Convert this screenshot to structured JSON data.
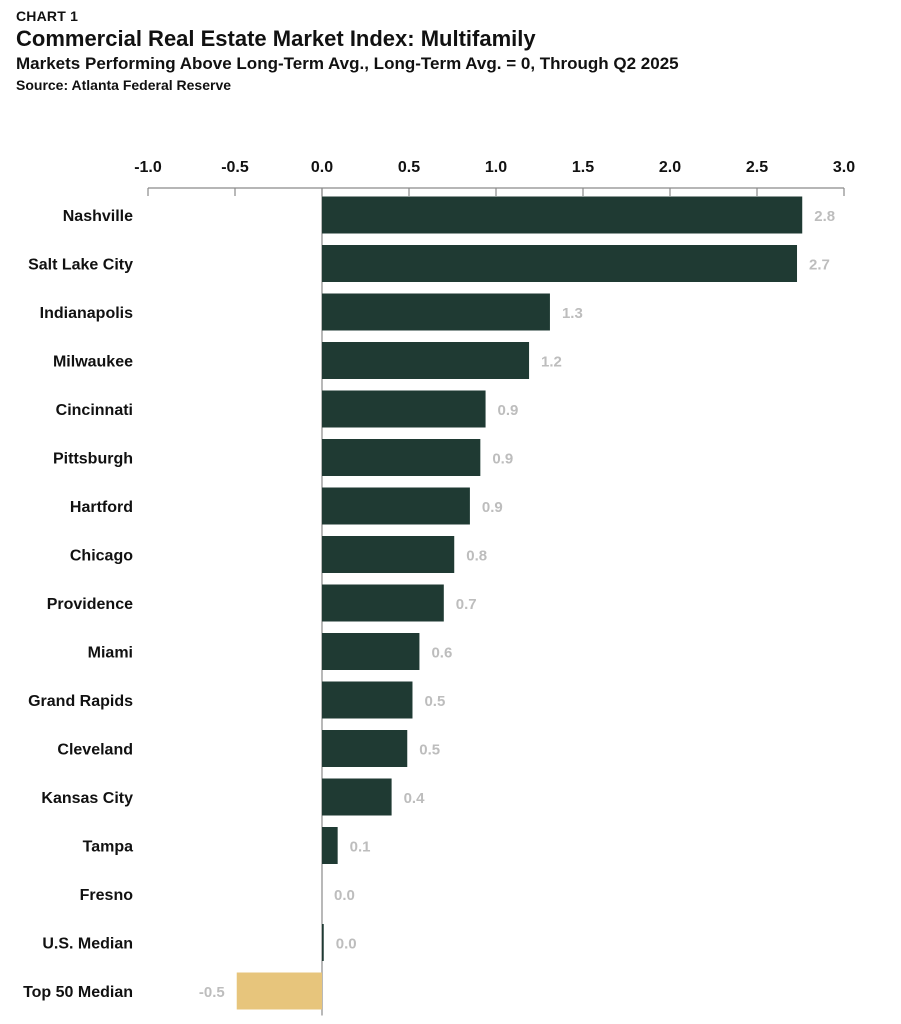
{
  "header": {
    "label": "CHART 1",
    "title": "Commercial Real Estate Market Index: Multifamily",
    "subtitle": "Markets Performing Above Long-Term Avg., Long-Term Avg. = 0, Through Q2 2025",
    "source": "Source: Atlanta Federal Reserve"
  },
  "colors": {
    "market_bar": "#1f3a33",
    "top50_bar": "#e7c57c",
    "value_label": "#bdbdbd",
    "axis": "#8a8a8a"
  },
  "chart_data": {
    "type": "bar",
    "orientation": "horizontal",
    "title": "Commercial Real Estate Market Index: Multifamily",
    "subtitle": "Markets Performing Above Long-Term Avg., Long-Term Avg. = 0, Through Q2 2025",
    "xlim": [
      -1.0,
      3.0
    ],
    "x_ticks": [
      -1.0,
      -0.5,
      0.0,
      0.5,
      1.0,
      1.5,
      2.0,
      2.5,
      3.0
    ],
    "x_tick_labels": [
      "-1.0",
      "-0.5",
      "0.0",
      "0.5",
      "1.0",
      "1.5",
      "2.0",
      "2.5",
      "3.0"
    ],
    "x_axis_position": "top",
    "grid": false,
    "categories": [
      "Nashville",
      "Salt Lake City",
      "Indianapolis",
      "Milwaukee",
      "Cincinnati",
      "Pittsburgh",
      "Hartford",
      "Chicago",
      "Providence",
      "Miami",
      "Grand Rapids",
      "Cleveland",
      "Kansas City",
      "Tampa",
      "Fresno",
      "U.S. Median",
      "Top 50 Median"
    ],
    "values": [
      2.76,
      2.73,
      1.31,
      1.19,
      0.94,
      0.91,
      0.85,
      0.76,
      0.7,
      0.56,
      0.52,
      0.49,
      0.4,
      0.09,
      0.0,
      0.01,
      -0.49
    ],
    "value_labels": [
      "2.8",
      "2.7",
      "1.3",
      "1.2",
      "0.9",
      "0.9",
      "0.9",
      "0.8",
      "0.7",
      "0.6",
      "0.5",
      "0.5",
      "0.4",
      "0.1",
      "0.0",
      "0.0",
      "-0.5"
    ],
    "highlight": {
      "category": "Top 50 Median",
      "color": "#e7c57c"
    }
  }
}
